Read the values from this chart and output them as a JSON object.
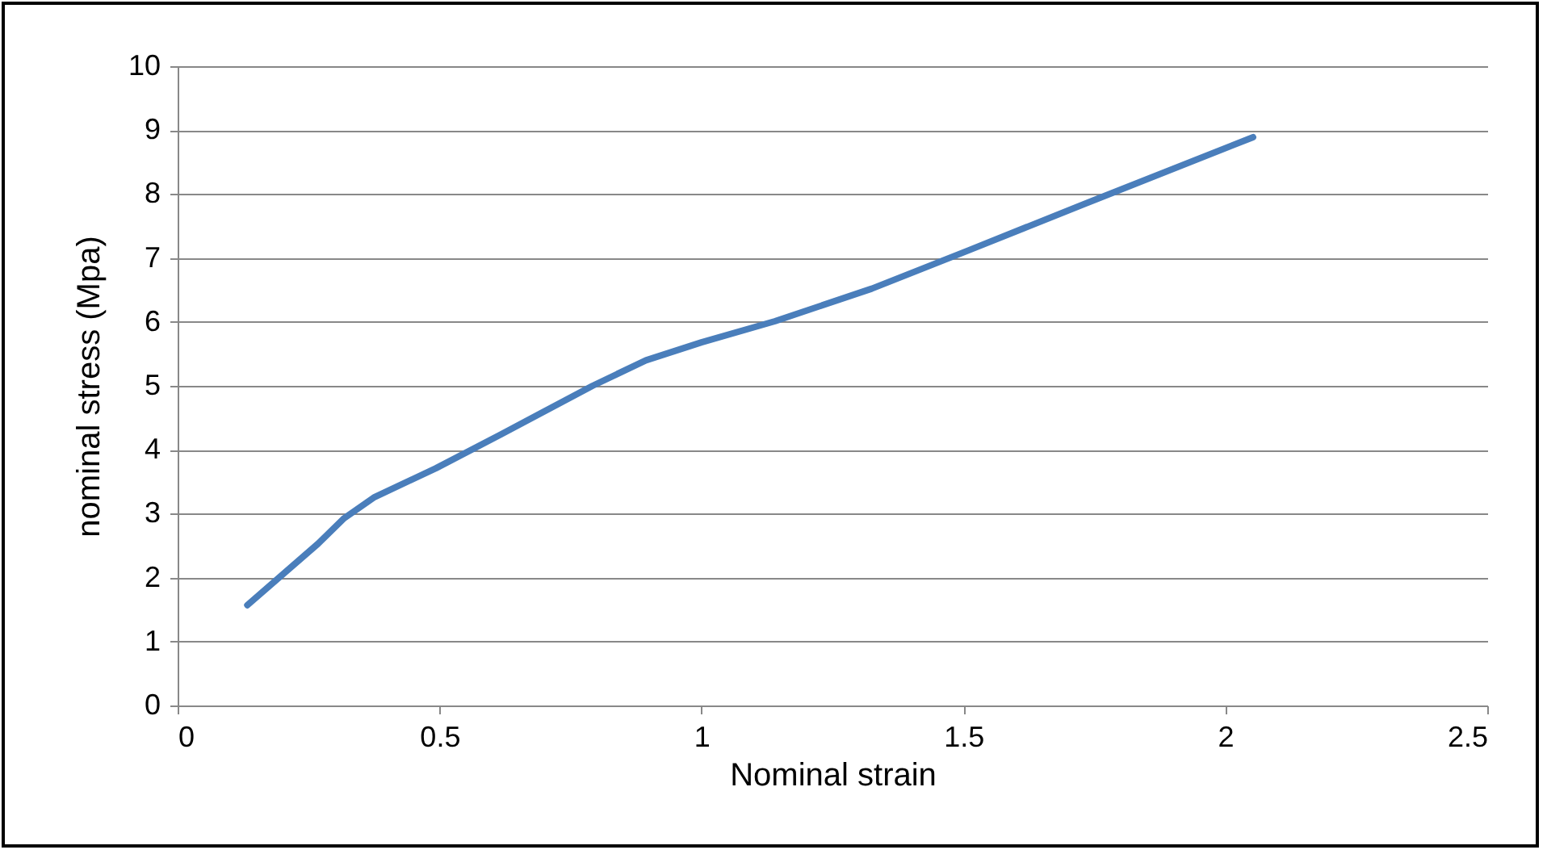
{
  "chart_data": {
    "type": "line",
    "xlabel": "Nominal strain",
    "ylabel": "nominal stress (Mpa)",
    "x": [
      0.133,
      0.268,
      0.318,
      0.376,
      0.493,
      0.617,
      0.792,
      0.894,
      1.0,
      1.14,
      1.325,
      1.51,
      1.757,
      2.053
    ],
    "series": [
      {
        "color": "#4a7ebb",
        "values": [
          1.57,
          2.53,
          2.93,
          3.26,
          3.71,
          4.24,
          5.0,
          5.4,
          5.68,
          6.01,
          6.52,
          7.12,
          7.93,
          8.89
        ]
      }
    ],
    "xlim": [
      0,
      2.5
    ],
    "xticks": [
      0,
      0.5,
      1,
      1.5,
      2,
      2.5
    ],
    "ylim": [
      0,
      10
    ],
    "yticks": [
      0,
      1,
      2,
      3,
      4,
      5,
      6,
      7,
      8,
      9,
      10
    ],
    "grid": "y",
    "legend": false,
    "marker": "none",
    "line_style": "solid"
  }
}
